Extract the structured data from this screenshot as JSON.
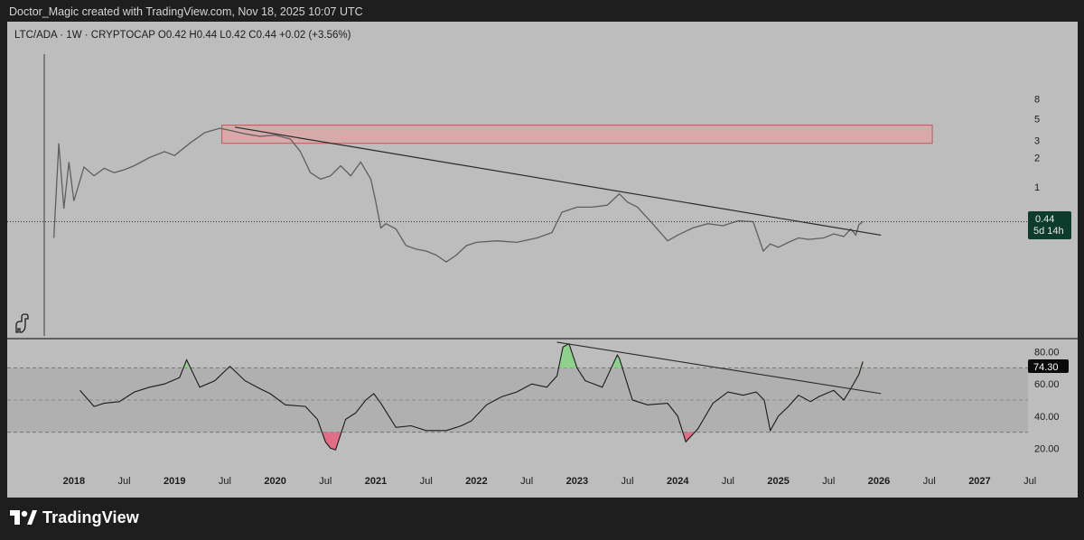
{
  "header": {
    "text": "Doctor_Magic created with TradingView.com, Nov 18, 2025 10:07 UTC"
  },
  "footer": {
    "brand": "TradingView",
    "logo_icon": "tradingview-logo-icon"
  },
  "symbol_line": "LTC/ADA · 1W · CRYPTOCAP  O0.42  H0.44  L0.42  C0.44  +0.02 (+3.56%)",
  "colors": {
    "panel_bg": "#bdbdbd",
    "price_line": "#5f5f5f",
    "resistance_zone": "#e0a3a3",
    "resistance_border": "#b85c5c",
    "trendline": "#2a2a2a",
    "rsi_line": "#1a1a1a",
    "price_label_bg": "#0d3b2c",
    "rsi_label_bg": "#0a0a0a",
    "overbought_fill": "#8fd08f",
    "oversold_fill": "#e06e86"
  },
  "price_label": {
    "value": "0.44",
    "countdown": "5d 14h"
  },
  "rsi_label": {
    "value": "74.30"
  },
  "chart_data": [
    {
      "type": "line",
      "name": "LTC/ADA weekly price",
      "scale": "log",
      "y_axis_ticks": [
        "8",
        "5",
        "3",
        "2",
        "1"
      ],
      "x_axis_ticks": [
        "2018",
        "Jul",
        "2019",
        "Jul",
        "2020",
        "Jul",
        "2021",
        "Jul",
        "2022",
        "Jul",
        "2023",
        "Jul",
        "2024",
        "Jul",
        "2025",
        "Jul",
        "2026",
        "Jul",
        "2027",
        "Jul"
      ],
      "x": [
        2017.8,
        2017.85,
        2017.9,
        2017.95,
        2018.0,
        2018.1,
        2018.2,
        2018.3,
        2018.4,
        2018.5,
        2018.6,
        2018.75,
        2018.9,
        2019.0,
        2019.15,
        2019.3,
        2019.45,
        2019.55,
        2019.7,
        2019.85,
        2020.0,
        2020.15,
        2020.25,
        2020.35,
        2020.45,
        2020.55,
        2020.65,
        2020.75,
        2020.85,
        2020.95,
        2021.0,
        2021.05,
        2021.1,
        2021.2,
        2021.3,
        2021.4,
        2021.5,
        2021.6,
        2021.7,
        2021.8,
        2021.9,
        2022.0,
        2022.2,
        2022.4,
        2022.6,
        2022.75,
        2022.85,
        2023.0,
        2023.15,
        2023.3,
        2023.42,
        2023.5,
        2023.6,
        2023.75,
        2023.9,
        2024.0,
        2024.15,
        2024.3,
        2024.45,
        2024.6,
        2024.75,
        2024.85,
        2024.92,
        2025.0,
        2025.1,
        2025.2,
        2025.3,
        2025.45,
        2025.55,
        2025.65,
        2025.72,
        2025.77,
        2025.8,
        2025.84
      ],
      "values": [
        0.3,
        2.8,
        0.6,
        1.8,
        0.72,
        1.6,
        1.3,
        1.55,
        1.4,
        1.5,
        1.65,
        2.0,
        2.3,
        2.1,
        2.8,
        3.6,
        4.0,
        3.8,
        3.5,
        3.3,
        3.4,
        3.1,
        2.3,
        1.4,
        1.2,
        1.3,
        1.65,
        1.3,
        1.8,
        1.2,
        0.7,
        0.38,
        0.42,
        0.37,
        0.25,
        0.23,
        0.22,
        0.2,
        0.17,
        0.2,
        0.25,
        0.27,
        0.28,
        0.27,
        0.3,
        0.34,
        0.55,
        0.62,
        0.62,
        0.65,
        0.85,
        0.7,
        0.62,
        0.42,
        0.28,
        0.32,
        0.38,
        0.42,
        0.4,
        0.45,
        0.44,
        0.22,
        0.26,
        0.24,
        0.27,
        0.3,
        0.29,
        0.3,
        0.33,
        0.31,
        0.37,
        0.32,
        0.41,
        0.44
      ],
      "resistance_zone": {
        "x_start": 2019.47,
        "x_end": 2026.53,
        "y_low": 2.8,
        "y_high": 4.3
      },
      "trendline": {
        "x1": 2019.6,
        "y1": 4.1,
        "x2": 2026.02,
        "y2": 0.32
      },
      "current_value": 0.44
    },
    {
      "type": "line",
      "name": "RSI",
      "y_axis_ticks": [
        80,
        60,
        40,
        20
      ],
      "ylim": [
        10,
        90
      ],
      "bands": {
        "upper": 70,
        "lower": 30,
        "middle": 50
      },
      "x": [
        2018.06,
        2018.2,
        2018.3,
        2018.45,
        2018.6,
        2018.75,
        2018.9,
        2019.05,
        2019.12,
        2019.25,
        2019.4,
        2019.55,
        2019.7,
        2019.85,
        2019.95,
        2020.1,
        2020.3,
        2020.42,
        2020.5,
        2020.55,
        2020.6,
        2020.7,
        2020.8,
        2020.9,
        2020.98,
        2021.05,
        2021.2,
        2021.35,
        2021.5,
        2021.7,
        2021.85,
        2021.95,
        2022.1,
        2022.25,
        2022.4,
        2022.55,
        2022.7,
        2022.8,
        2022.86,
        2022.92,
        2023.0,
        2023.08,
        2023.25,
        2023.4,
        2023.42,
        2023.55,
        2023.7,
        2023.9,
        2024.0,
        2024.08,
        2024.2,
        2024.35,
        2024.5,
        2024.65,
        2024.78,
        2024.86,
        2024.92,
        2025.0,
        2025.1,
        2025.2,
        2025.32,
        2025.4,
        2025.55,
        2025.65,
        2025.72,
        2025.8,
        2025.84
      ],
      "values": [
        56,
        46,
        48,
        49,
        55,
        58,
        60,
        64,
        75,
        58,
        62,
        71,
        62,
        57,
        54,
        47,
        46,
        38,
        24,
        20,
        19,
        38,
        42,
        50,
        54,
        48,
        33,
        34,
        31,
        31,
        34,
        37,
        47,
        52,
        55,
        60,
        58,
        65,
        83,
        85,
        70,
        62,
        58,
        78,
        76,
        50,
        47,
        48,
        40,
        24,
        32,
        48,
        55,
        53,
        55,
        50,
        31,
        40,
        46,
        53,
        49,
        52,
        56,
        50,
        57,
        66,
        74
      ]
    }
  ]
}
